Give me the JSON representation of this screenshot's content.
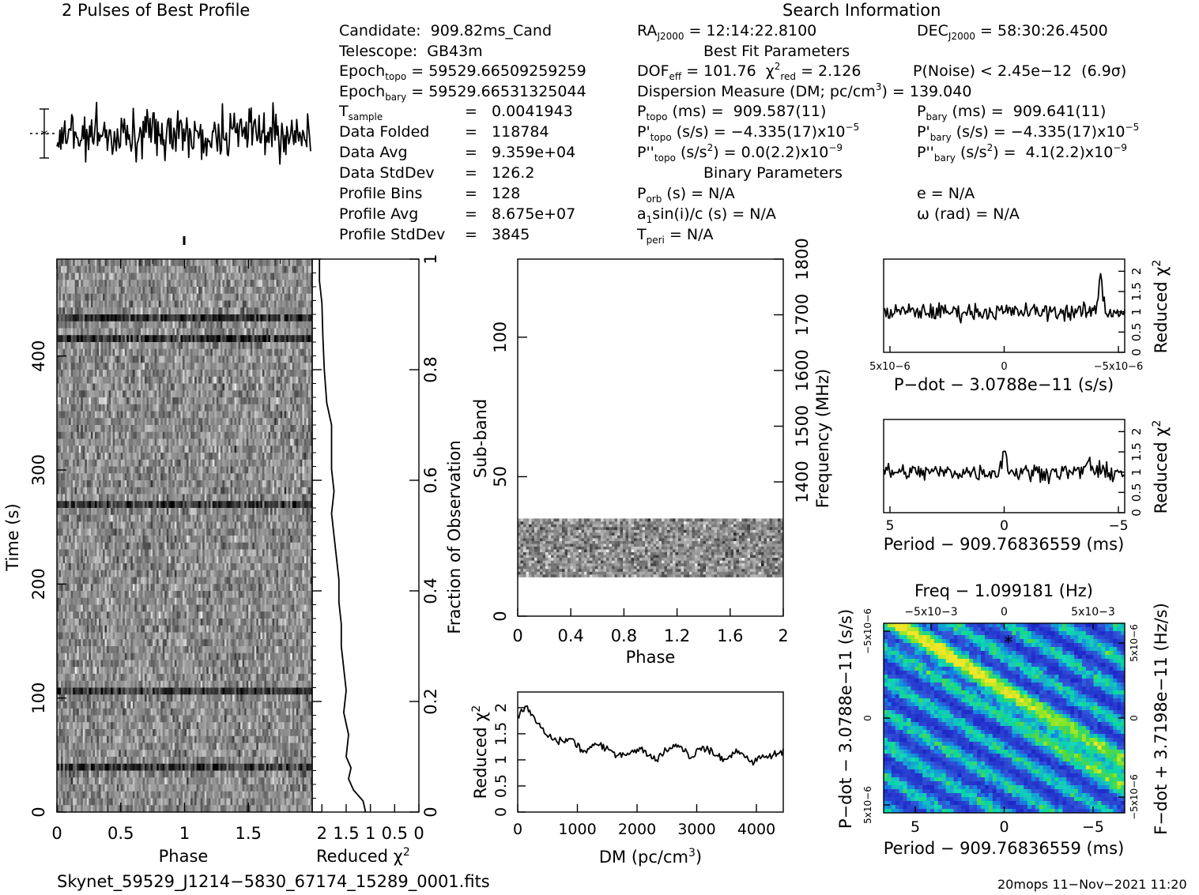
{
  "header": {
    "profile_title": "2 Pulses of Best Profile",
    "search_title": "Search Information",
    "best_fit_title": "Best Fit Parameters",
    "binary_title": "Binary Parameters"
  },
  "info": {
    "candidate": "Candidate:  909.82ms_Cand",
    "telescope": "Telescope:  GB43m",
    "epoch_topo_pre": "Epoch",
    "epoch_topo_sub": "topo",
    "epoch_topo_val": " = 59529.66509259259",
    "epoch_bary_pre": "Epoch",
    "epoch_bary_sub": "bary",
    "epoch_bary_val": " = 59529.66531325044",
    "tsample_pre": "T",
    "tsample_sub": "sample",
    "tsample_eq": "=   0.0041943",
    "rows": [
      {
        "label": "Data Folded",
        "value": "=   118784"
      },
      {
        "label": "Data Avg",
        "value": "=   9.359e+04"
      },
      {
        "label": "Data StdDev",
        "value": "=   126.2"
      },
      {
        "label": "Profile Bins",
        "value": "=   128"
      },
      {
        "label": "Profile Avg",
        "value": "=   8.675e+07"
      },
      {
        "label": "Profile StdDev",
        "value": "=   3845"
      }
    ]
  },
  "search": {
    "ra_pre": "RA",
    "ra_sub": "J2000",
    "ra_val": " = 12:14:22.8100",
    "dec_pre": "DEC",
    "dec_sub": "J2000",
    "dec_val": " = 58:30:26.4500",
    "dof": "DOF",
    "dof_sub": "eff",
    "dof_val": " = 101.76  ",
    "chi": "χ",
    "chi_sup": "2",
    "chi_sub": "red",
    "chi_val": " = 2.126",
    "pnoise": "P(Noise) < 2.45e−12  (6.9σ)",
    "dm_pre": "Dispersion Measure (DM; pc/cm",
    "dm_sup": "3",
    "dm_val": ") = 139.040",
    "p_topo_lbl": "P",
    "p_topo_sub": "topo",
    "p_topo_val": " (ms) =  909.587(11)",
    "p_bary_lbl": "P",
    "p_bary_sub": "bary",
    "p_bary_val": " (ms) =  909.641(11)",
    "pd_topo_pre": "P'",
    "pd_topo_sub": "topo",
    "pd_topo_val": " (s/s) = −4.335(17)x10",
    "pd_topo_exp": "−5",
    "pd_bary_pre": "P'",
    "pd_bary_sub": "bary",
    "pd_bary_val": " (s/s) = −4.335(17)x10",
    "pd_bary_exp": "−5",
    "pdd_topo_pre": "P''",
    "pdd_topo_sub": "topo",
    "pdd_topo_val": " (s/s",
    "pdd_topo_sup": "2",
    "pdd_topo_val2": ") = 0.0(2.2)x10",
    "pdd_topo_exp": "−9",
    "pdd_bary_pre": "P''",
    "pdd_bary_sub": "bary",
    "pdd_bary_val": " (s/s",
    "pdd_bary_sup": "2",
    "pdd_bary_val2": ") =  4.1(2.2)x10",
    "pdd_bary_exp": "−9",
    "porb_pre": "P",
    "porb_sub": "orb",
    "porb_val": " (s) = N/A",
    "e_val": "e = N/A",
    "a1_pre": "a",
    "a1_sub": "1",
    "a1_val": "sin(i)/c (s) = N/A",
    "omega_val": "ω (rad) = N/A",
    "tperi_pre": "T",
    "tperi_sub": "peri",
    "tperi_val": " = N/A"
  },
  "footer": {
    "filename": "Skynet_59529_J1214−5830_67174_15289_0001.fits",
    "stamp": "20mops 11−Nov−2021 11:20"
  },
  "chart_data": [
    {
      "type": "line",
      "title": "2 Pulses of Best Profile",
      "x": "phase 0–2",
      "note": "noisy two-pulse profile"
    },
    {
      "type": "heatmap",
      "xlabel": "Phase",
      "ylabel": "Time (s)",
      "x_ticks": [
        "0",
        "0.5",
        "1",
        "1.5"
      ],
      "y_ticks": [
        "0",
        "100",
        "200",
        "300",
        "400"
      ],
      "xlim": [
        0,
        2
      ],
      "ylim": [
        0,
        485
      ],
      "colormap": "grayscale"
    },
    {
      "type": "line",
      "xlabel": "Reduced χ2",
      "ylabel": "Fraction of Observation",
      "x_ticks": [
        "2",
        "1.5",
        "1",
        "0.5",
        "0"
      ],
      "y_ticks": [
        "0",
        "0.2",
        "0.4",
        "0.6",
        "0.8",
        "1"
      ],
      "points": [
        [
          1.1,
          0.0
        ],
        [
          1.15,
          0.02
        ],
        [
          1.35,
          0.04
        ],
        [
          1.45,
          0.06
        ],
        [
          1.4,
          0.08
        ],
        [
          1.5,
          0.1
        ],
        [
          1.45,
          0.14
        ],
        [
          1.55,
          0.18
        ],
        [
          1.5,
          0.22
        ],
        [
          1.55,
          0.26
        ],
        [
          1.6,
          0.3
        ],
        [
          1.6,
          0.34
        ],
        [
          1.65,
          0.38
        ],
        [
          1.65,
          0.42
        ],
        [
          1.7,
          0.46
        ],
        [
          1.75,
          0.5
        ],
        [
          1.8,
          0.54
        ],
        [
          1.75,
          0.58
        ],
        [
          1.8,
          0.62
        ],
        [
          1.8,
          0.66
        ],
        [
          1.8,
          0.7
        ],
        [
          1.9,
          0.74
        ],
        [
          1.95,
          0.8
        ],
        [
          1.98,
          0.86
        ],
        [
          2.0,
          0.92
        ],
        [
          2.05,
          0.96
        ],
        [
          2.05,
          1.0
        ]
      ]
    },
    {
      "type": "heatmap",
      "xlabel": "Phase",
      "ylabel": "Sub-band",
      "y2label": "Frequency (MHz)",
      "x_ticks": [
        "0",
        "0.4",
        "0.8",
        "1.2",
        "1.6",
        "2"
      ],
      "y_ticks": [
        "0",
        "50",
        "100"
      ],
      "y2_ticks": [
        "1400",
        "1500",
        "1600",
        "1700",
        "1800"
      ],
      "occupied_subbands": [
        14,
        35
      ]
    },
    {
      "type": "line",
      "xlabel": "DM (pc/cm3)",
      "ylabel": "Reduced χ2",
      "x_ticks": [
        "0",
        "1000",
        "2000",
        "3000",
        "4000"
      ],
      "y_ticks": [
        "0",
        "0.5",
        "1",
        "1.5",
        "2"
      ],
      "xlim": [
        0,
        4450
      ],
      "ylim": [
        0,
        2.3
      ],
      "points": [
        [
          0,
          1.85
        ],
        [
          150,
          2.0
        ],
        [
          300,
          1.75
        ],
        [
          500,
          1.45
        ],
        [
          700,
          1.35
        ],
        [
          900,
          1.4
        ],
        [
          1100,
          1.15
        ],
        [
          1300,
          1.3
        ],
        [
          1500,
          1.2
        ],
        [
          1700,
          1.1
        ],
        [
          1900,
          1.15
        ],
        [
          2100,
          1.2
        ],
        [
          2300,
          1.0
        ],
        [
          2500,
          1.2
        ],
        [
          2700,
          1.3
        ],
        [
          2900,
          1.05
        ],
        [
          3100,
          1.25
        ],
        [
          3300,
          1.1
        ],
        [
          3500,
          1.0
        ],
        [
          3700,
          1.2
        ],
        [
          3900,
          0.95
        ],
        [
          4100,
          1.05
        ],
        [
          4300,
          1.1
        ],
        [
          4450,
          1.15
        ]
      ]
    },
    {
      "type": "line",
      "xlabel": "P-dot − 3.0788e-11 (s/s)",
      "ylabel": "Reduced χ2",
      "x_ticks": [
        "5x10−6",
        "0",
        "−5x10−6"
      ],
      "y_ticks": [
        "0",
        "0.5",
        "1",
        "1.5",
        "2"
      ]
    },
    {
      "type": "line",
      "xlabel": "Period − 909.76836559 (ms)",
      "ylabel": "Reduced χ2",
      "x_ticks": [
        "5",
        "0",
        "−5"
      ],
      "y_ticks": [
        "0",
        "0.5",
        "1",
        "1.5",
        "2"
      ]
    },
    {
      "type": "heatmap",
      "title": "Freq − 1.099181 (Hz)",
      "xlabel": "Period − 909.76836559 (ms)",
      "ylabel": "P-dot − 3.0788e-11 (s/s)",
      "y2label": "F-dot + 3.7198e-11 (Hz/s)",
      "x_ticks": [
        "5",
        "0",
        "−5"
      ],
      "top_ticks": [
        "−5x10−3",
        "0",
        "5x10−3"
      ],
      "y_ticks": [
        "5x10−6",
        "0",
        "−5x10−6"
      ],
      "y2_ticks": [
        "−5x10−6",
        "0",
        "5x10−6"
      ],
      "colormap": "blue-cyan-green-yellow"
    }
  ]
}
